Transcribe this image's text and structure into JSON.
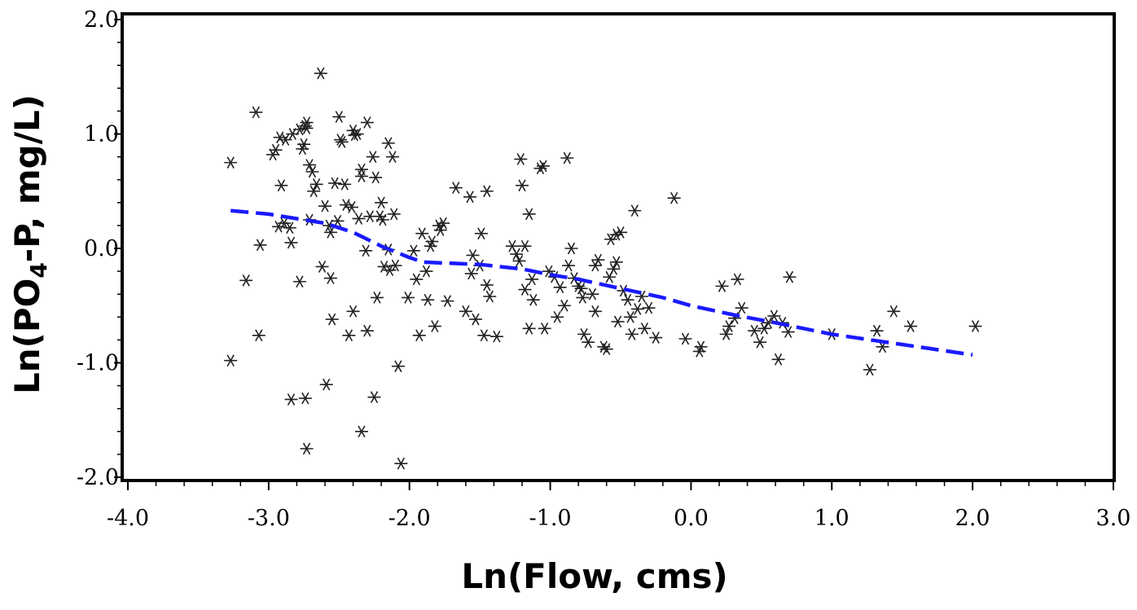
{
  "chart_data": {
    "type": "scatter",
    "title": "",
    "xlabel": "Ln(Flow, cms)",
    "ylabel": {
      "prefix": "Ln(PO",
      "subscript": "4",
      "suffix": "-P, mg/L)"
    },
    "xlim": [
      -4.0,
      3.0
    ],
    "ylim": [
      -2.0,
      2.0
    ],
    "x_ticks": [
      -4.0,
      -3.0,
      -2.0,
      -1.0,
      0.0,
      1.0,
      2.0,
      3.0
    ],
    "y_ticks": [
      -2.0,
      -1.0,
      0.0,
      1.0,
      2.0
    ],
    "x_tick_labels": [
      "-4.0",
      "-3.0",
      "-2.0",
      "-1.0",
      "0.0",
      "1.0",
      "2.0",
      "3.0"
    ],
    "y_tick_labels": [
      "-2.0",
      "-1.0",
      "0.0",
      "1.0",
      "2.0"
    ],
    "grid": false,
    "legend": "none",
    "colors": {
      "points": "#222222",
      "trend": "#1a1aff",
      "frame": "#000000"
    },
    "series": [
      {
        "kind": "points",
        "marker": "asterisk",
        "points": [
          [
            -3.27,
            0.75
          ],
          [
            -3.27,
            -0.98
          ],
          [
            -3.16,
            -0.28
          ],
          [
            -3.09,
            1.19
          ],
          [
            -3.07,
            -0.76
          ],
          [
            -3.06,
            0.03
          ],
          [
            -2.97,
            0.82
          ],
          [
            -2.95,
            0.86
          ],
          [
            -2.93,
            0.19
          ],
          [
            -2.92,
            0.97
          ],
          [
            -2.91,
            0.55
          ],
          [
            -2.89,
            0.22
          ],
          [
            -2.88,
            0.95
          ],
          [
            -2.85,
            0.18
          ],
          [
            -2.84,
            0.05
          ],
          [
            -2.84,
            -1.32
          ],
          [
            -2.83,
            1.0
          ],
          [
            -2.78,
            1.04
          ],
          [
            -2.78,
            -0.29
          ],
          [
            -2.76,
            0.87
          ],
          [
            -2.75,
            0.91
          ],
          [
            -2.74,
            1.07
          ],
          [
            -2.73,
            1.05
          ],
          [
            -2.73,
            1.1
          ],
          [
            -2.74,
            -1.31
          ],
          [
            -2.73,
            -1.75
          ],
          [
            -2.71,
            0.73
          ],
          [
            -2.71,
            0.25
          ],
          [
            -2.69,
            0.67
          ],
          [
            -2.68,
            0.5
          ],
          [
            -2.66,
            0.56
          ],
          [
            -2.63,
            1.53
          ],
          [
            -2.62,
            -0.16
          ],
          [
            -2.6,
            0.37
          ],
          [
            -2.59,
            -1.19
          ],
          [
            -2.57,
            0.2
          ],
          [
            -2.56,
            0.14
          ],
          [
            -2.56,
            -0.26
          ],
          [
            -2.55,
            -0.62
          ],
          [
            -2.53,
            0.57
          ],
          [
            -2.51,
            0.24
          ],
          [
            -2.5,
            1.15
          ],
          [
            -2.49,
            0.95
          ],
          [
            -2.48,
            0.93
          ],
          [
            -2.46,
            0.56
          ],
          [
            -2.45,
            0.38
          ],
          [
            -2.43,
            -0.76
          ],
          [
            -2.41,
            0.36
          ],
          [
            -2.4,
            1.03
          ],
          [
            -2.4,
            -0.55
          ],
          [
            -2.39,
            0.99
          ],
          [
            -2.37,
            1.0
          ],
          [
            -2.36,
            0.26
          ],
          [
            -2.34,
            -1.6
          ],
          [
            -2.34,
            0.69
          ],
          [
            -2.34,
            0.63
          ],
          [
            -2.31,
            -0.02
          ],
          [
            -2.3,
            1.1
          ],
          [
            -2.3,
            -0.72
          ],
          [
            -2.28,
            0.28
          ],
          [
            -2.26,
            0.8
          ],
          [
            -2.25,
            -1.3
          ],
          [
            -2.24,
            0.62
          ],
          [
            -2.23,
            -0.43
          ],
          [
            -2.21,
            0.28
          ],
          [
            -2.2,
            0.4
          ],
          [
            -2.19,
            0.25
          ],
          [
            -2.18,
            -0.16
          ],
          [
            -2.15,
            0.92
          ],
          [
            -2.15,
            -0.01
          ],
          [
            -2.14,
            -0.19
          ],
          [
            -2.12,
            0.8
          ],
          [
            -2.11,
            0.3
          ],
          [
            -2.1,
            -0.15
          ],
          [
            -2.08,
            -1.03
          ],
          [
            -2.06,
            -1.88
          ],
          [
            -2.01,
            -0.43
          ],
          [
            -1.97,
            -0.02
          ],
          [
            -1.95,
            -0.27
          ],
          [
            -1.93,
            -0.76
          ],
          [
            -1.91,
            0.13
          ],
          [
            -1.88,
            -0.2
          ],
          [
            -1.87,
            -0.45
          ],
          [
            -1.85,
            0.02
          ],
          [
            -1.84,
            0.06
          ],
          [
            -1.82,
            -0.68
          ],
          [
            -1.79,
            0.2
          ],
          [
            -1.78,
            0.16
          ],
          [
            -1.76,
            0.22
          ],
          [
            -1.73,
            -0.46
          ],
          [
            -1.67,
            0.53
          ],
          [
            -1.6,
            -0.55
          ],
          [
            -1.57,
            0.45
          ],
          [
            -1.56,
            -0.22
          ],
          [
            -1.55,
            -0.06
          ],
          [
            -1.53,
            -0.62
          ],
          [
            -1.5,
            -0.15
          ],
          [
            -1.49,
            0.13
          ],
          [
            -1.47,
            -0.76
          ],
          [
            -1.45,
            0.5
          ],
          [
            -1.45,
            -0.32
          ],
          [
            -1.43,
            -0.42
          ],
          [
            -1.38,
            -0.77
          ],
          [
            -1.27,
            0.02
          ],
          [
            -1.24,
            -0.05
          ],
          [
            -1.22,
            -0.11
          ],
          [
            -1.21,
            0.78
          ],
          [
            -1.2,
            0.55
          ],
          [
            -1.18,
            -0.36
          ],
          [
            -1.18,
            0.02
          ],
          [
            -1.15,
            -0.7
          ],
          [
            -1.15,
            0.3
          ],
          [
            -1.13,
            -0.27
          ],
          [
            -1.12,
            -0.45
          ],
          [
            -1.07,
            0.7
          ],
          [
            -1.05,
            0.72
          ],
          [
            -1.04,
            -0.7
          ],
          [
            -1.01,
            -0.2
          ],
          [
            -0.97,
            -0.25
          ],
          [
            -0.95,
            -0.6
          ],
          [
            -0.93,
            -0.34
          ],
          [
            -0.9,
            -0.5
          ],
          [
            -0.88,
            0.79
          ],
          [
            -0.87,
            -0.15
          ],
          [
            -0.85,
            0.0
          ],
          [
            -0.83,
            -0.26
          ],
          [
            -0.8,
            -0.33
          ],
          [
            -0.78,
            -0.35
          ],
          [
            -0.77,
            -0.43
          ],
          [
            -0.76,
            -0.75
          ],
          [
            -0.73,
            -0.82
          ],
          [
            -0.7,
            -0.4
          ],
          [
            -0.68,
            -0.55
          ],
          [
            -0.68,
            -0.15
          ],
          [
            -0.66,
            -0.1
          ],
          [
            -0.62,
            -0.86
          ],
          [
            -0.6,
            -0.88
          ],
          [
            -0.58,
            -0.25
          ],
          [
            -0.57,
            0.08
          ],
          [
            -0.55,
            -0.18
          ],
          [
            -0.53,
            0.12
          ],
          [
            -0.53,
            -0.12
          ],
          [
            -0.52,
            -0.64
          ],
          [
            -0.5,
            0.14
          ],
          [
            -0.48,
            -0.37
          ],
          [
            -0.45,
            -0.45
          ],
          [
            -0.43,
            -0.6
          ],
          [
            -0.42,
            -0.75
          ],
          [
            -0.4,
            0.33
          ],
          [
            -0.38,
            -0.53
          ],
          [
            -0.35,
            -0.42
          ],
          [
            -0.33,
            -0.7
          ],
          [
            -0.3,
            -0.52
          ],
          [
            -0.25,
            -0.78
          ],
          [
            -0.12,
            0.44
          ],
          [
            -0.04,
            -0.79
          ],
          [
            0.06,
            -0.9
          ],
          [
            0.07,
            -0.86
          ],
          [
            0.22,
            -0.33
          ],
          [
            0.25,
            -0.75
          ],
          [
            0.27,
            -0.68
          ],
          [
            0.31,
            -0.61
          ],
          [
            0.33,
            -0.27
          ],
          [
            0.36,
            -0.52
          ],
          [
            0.45,
            -0.72
          ],
          [
            0.49,
            -0.82
          ],
          [
            0.52,
            -0.7
          ],
          [
            0.55,
            -0.65
          ],
          [
            0.59,
            -0.59
          ],
          [
            0.62,
            -0.97
          ],
          [
            0.65,
            -0.65
          ],
          [
            0.69,
            -0.73
          ],
          [
            0.7,
            -0.25
          ],
          [
            1.0,
            -0.75
          ],
          [
            1.27,
            -1.06
          ],
          [
            1.32,
            -0.72
          ],
          [
            1.36,
            -0.86
          ],
          [
            1.44,
            -0.55
          ],
          [
            1.56,
            -0.68
          ],
          [
            2.02,
            -0.68
          ]
        ]
      },
      {
        "kind": "trend",
        "style": "dashed",
        "points": [
          [
            -3.27,
            0.33
          ],
          [
            -3.0,
            0.3
          ],
          [
            -2.8,
            0.26
          ],
          [
            -2.6,
            0.22
          ],
          [
            -2.4,
            0.14
          ],
          [
            -2.2,
            0.02
          ],
          [
            -2.0,
            -0.08
          ],
          [
            -1.9,
            -0.12
          ],
          [
            -1.7,
            -0.13
          ],
          [
            -1.5,
            -0.14
          ],
          [
            -1.2,
            -0.18
          ],
          [
            -1.0,
            -0.23
          ],
          [
            -0.8,
            -0.27
          ],
          [
            -0.5,
            -0.35
          ],
          [
            -0.2,
            -0.43
          ],
          [
            0.0,
            -0.5
          ],
          [
            0.3,
            -0.58
          ],
          [
            0.6,
            -0.65
          ],
          [
            1.0,
            -0.75
          ],
          [
            1.5,
            -0.84
          ],
          [
            2.0,
            -0.93
          ]
        ]
      }
    ]
  }
}
